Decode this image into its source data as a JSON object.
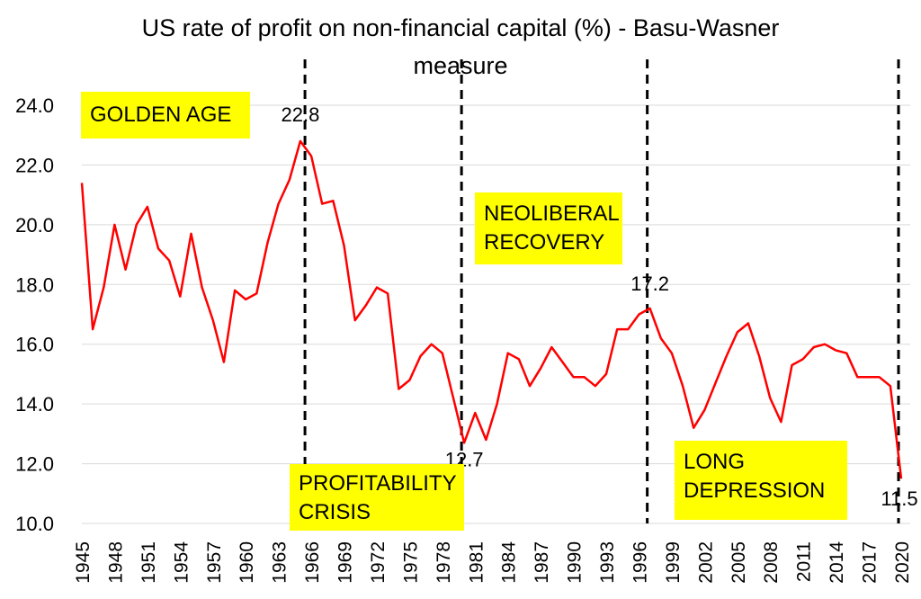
{
  "chart_data": {
    "type": "line",
    "title_line1": "US rate of profit on non-financial capital (%) - Basu-Wasner",
    "title_line2": "measure",
    "xlabel": "",
    "ylabel": "",
    "ylim": [
      10.0,
      25.0
    ],
    "yticks": [
      "10.0",
      "12.0",
      "14.0",
      "16.0",
      "18.0",
      "20.0",
      "22.0",
      "24.0"
    ],
    "xtick_labels": [
      "1945",
      "1948",
      "1951",
      "1954",
      "1957",
      "1960",
      "1963",
      "1966",
      "1969",
      "1972",
      "1975",
      "1978",
      "1981",
      "1984",
      "1987",
      "1990",
      "1993",
      "1996",
      "1999",
      "2002",
      "2005",
      "2008",
      "2011",
      "2014",
      "2017",
      "2020"
    ],
    "grid": "horizontal",
    "legend": "none",
    "line_color": "#ff0000",
    "highlight_color": "#ffff00",
    "series": [
      {
        "x": [
          1945,
          1946,
          1947,
          1948,
          1949,
          1950,
          1951,
          1952,
          1953,
          1954,
          1955,
          1956,
          1957,
          1958,
          1959,
          1960,
          1961,
          1962,
          1963,
          1964,
          1965,
          1966,
          1967,
          1968,
          1969,
          1970,
          1971,
          1972,
          1973,
          1974,
          1975,
          1976,
          1977,
          1978,
          1979,
          1980,
          1981,
          1982,
          1983,
          1984,
          1985,
          1986,
          1987,
          1988,
          1989,
          1990,
          1991,
          1992,
          1993,
          1994,
          1995,
          1996,
          1997,
          1998,
          1999,
          2000,
          2001,
          2002,
          2003,
          2004,
          2005,
          2006,
          2007,
          2008,
          2009,
          2010,
          2011,
          2012,
          2013,
          2014,
          2015,
          2016,
          2017,
          2018,
          2019,
          2020
        ],
        "values": [
          21.4,
          16.5,
          17.9,
          20.0,
          18.5,
          20.0,
          20.6,
          19.2,
          18.8,
          17.6,
          19.7,
          17.9,
          16.8,
          15.4,
          17.8,
          17.5,
          17.7,
          19.4,
          20.7,
          21.5,
          22.8,
          22.3,
          20.7,
          20.8,
          19.3,
          16.8,
          17.3,
          17.9,
          17.7,
          14.5,
          14.8,
          15.6,
          16.0,
          15.7,
          14.2,
          12.7,
          13.7,
          12.8,
          14.0,
          15.7,
          15.5,
          14.6,
          15.2,
          15.9,
          15.4,
          14.9,
          14.9,
          14.6,
          15.0,
          16.5,
          16.5,
          17.0,
          17.2,
          16.2,
          15.7,
          14.6,
          13.2,
          13.8,
          14.7,
          15.6,
          16.4,
          16.7,
          15.6,
          14.2,
          13.4,
          15.3,
          15.5,
          15.9,
          16.0,
          15.8,
          15.7,
          14.9,
          14.9,
          14.9,
          14.6,
          11.5
        ]
      }
    ],
    "data_labels": [
      {
        "x": 1965,
        "text": "22.8"
      },
      {
        "x": 1980,
        "text": "12.7"
      },
      {
        "x": 1997,
        "text": "17.2"
      },
      {
        "x": 2020,
        "text": "11.5"
      }
    ],
    "vlines": [
      1966,
      1980,
      1997,
      2020
    ],
    "annotations": [
      {
        "text": "GOLDEN AGE",
        "lines": [
          "GOLDEN AGE"
        ]
      },
      {
        "text": "PROFITABILITY CRISIS",
        "lines": [
          "PROFITABILITY",
          "CRISIS"
        ]
      },
      {
        "text": "NEOLIBERAL RECOVERY",
        "lines": [
          "NEOLIBERAL",
          "RECOVERY"
        ]
      },
      {
        "text": "LONG DEPRESSION",
        "lines": [
          "LONG",
          "DEPRESSION"
        ]
      }
    ]
  }
}
